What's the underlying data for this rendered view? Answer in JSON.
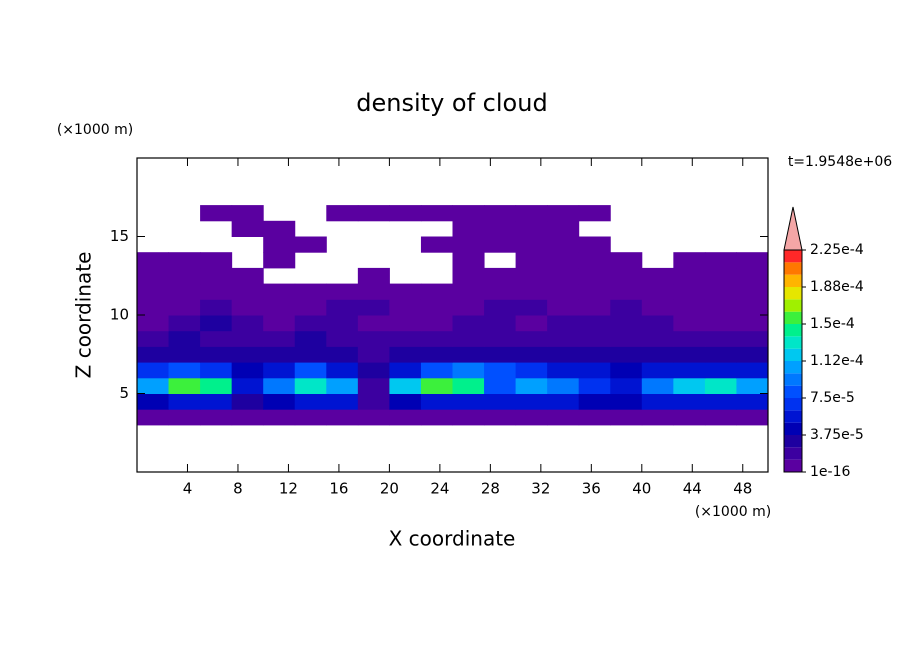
{
  "chart_data": {
    "type": "contour",
    "title": "density of cloud",
    "x_label": "X coordinate",
    "y_label": "Z coordinate",
    "x_unit": "(×1000 m)",
    "y_unit": "(×1000 m)",
    "annotation": "t=1.9548e+06",
    "xlim": [
      0,
      50
    ],
    "ylim": [
      0,
      20
    ],
    "xticks": [
      4,
      8,
      12,
      16,
      20,
      24,
      28,
      32,
      36,
      40,
      44,
      48
    ],
    "yticks": [
      5,
      10,
      15
    ],
    "x": [
      1.25,
      3.75,
      6.25,
      8.75,
      11.25,
      13.75,
      16.25,
      18.75,
      21.25,
      23.75,
      26.25,
      28.75,
      31.25,
      33.75,
      36.25,
      38.75,
      41.25,
      43.75,
      46.25,
      48.75
    ],
    "y": [
      3.5,
      4.5,
      5.5,
      6.5,
      7.5,
      8.5,
      9.5,
      10.5,
      11.5,
      12.5,
      13.5,
      14.5,
      15.5,
      16.5
    ],
    "z": [
      [
        1e-05,
        1e-05,
        1e-05,
        1e-05,
        1e-05,
        1e-05,
        1e-05,
        1e-05,
        1e-05,
        1e-05,
        1e-05,
        1e-05,
        1e-05,
        1e-05,
        1e-05,
        1e-05,
        1e-05,
        1e-05,
        1e-05,
        1e-05
      ],
      [
        4e-05,
        5e-05,
        5e-05,
        3e-05,
        4e-05,
        6e-05,
        5e-05,
        1.5e-05,
        4e-05,
        6e-05,
        6e-05,
        5e-05,
        5e-05,
        5e-05,
        4e-05,
        4e-05,
        5e-05,
        6e-05,
        6e-05,
        5e-05
      ],
      [
        0.00011,
        0.00015,
        0.00014,
        5e-05,
        9e-05,
        0.00013,
        0.0001,
        2e-05,
        0.00012,
        0.00016,
        0.00014,
        8e-05,
        0.0001,
        9e-05,
        7e-05,
        6e-05,
        9e-05,
        0.00012,
        0.00013,
        0.00011
      ],
      [
        7e-05,
        8e-05,
        7e-05,
        4e-05,
        6e-05,
        8e-05,
        6e-05,
        3e-05,
        6e-05,
        8e-05,
        9e-05,
        8e-05,
        7e-05,
        6e-05,
        5e-05,
        4e-05,
        5e-05,
        6e-05,
        6e-05,
        5e-05
      ],
      [
        3e-05,
        3e-05,
        3.5e-05,
        3e-05,
        2.5e-05,
        3e-05,
        3e-05,
        2e-05,
        3e-05,
        3e-05,
        3e-05,
        3e-05,
        3e-05,
        2.5e-05,
        2.5e-05,
        2.5e-05,
        3e-05,
        3e-05,
        2.5e-05,
        2.5e-05
      ],
      [
        1.5e-05,
        2.5e-05,
        2e-05,
        2e-05,
        2e-05,
        2.5e-05,
        2e-05,
        1.5e-05,
        1.5e-05,
        2e-05,
        2e-05,
        1.5e-05,
        2e-05,
        2e-05,
        2e-05,
        2e-05,
        1.5e-05,
        2e-05,
        2e-05,
        1.5e-05
      ],
      [
        1e-05,
        1.5e-05,
        2.5e-05,
        1.5e-05,
        1e-05,
        1.5e-05,
        1.5e-05,
        1e-05,
        1e-05,
        1e-05,
        1.5e-05,
        1.5e-05,
        1e-05,
        1.5e-05,
        1.5e-05,
        1.5e-05,
        1.5e-05,
        1e-05,
        1e-05,
        1e-05
      ],
      [
        5e-06,
        1e-05,
        1.5e-05,
        1e-05,
        1e-05,
        1e-05,
        1.5e-05,
        1.5e-05,
        5e-06,
        1e-05,
        1e-05,
        1.5e-05,
        1.5e-05,
        1e-05,
        1e-05,
        1.5e-05,
        1e-05,
        5e-06,
        5e-06,
        5e-06
      ],
      [
        5e-06,
        5e-06,
        5e-06,
        5e-06,
        5e-06,
        5e-06,
        5e-06,
        5e-06,
        5e-06,
        5e-06,
        5e-06,
        5e-06,
        5e-06,
        5e-06,
        5e-06,
        5e-06,
        5e-06,
        5e-06,
        5e-06,
        5e-06
      ],
      [
        5e-06,
        5e-06,
        5e-06,
        5e-06,
        null,
        null,
        null,
        5e-06,
        null,
        null,
        5e-06,
        5e-06,
        5e-06,
        5e-06,
        5e-06,
        5e-06,
        5e-06,
        5e-06,
        5e-06,
        5e-06
      ],
      [
        5e-06,
        5e-06,
        5e-06,
        null,
        5e-06,
        null,
        null,
        null,
        null,
        null,
        5e-06,
        null,
        5e-06,
        5e-06,
        5e-06,
        5e-06,
        null,
        5e-06,
        5e-06,
        5e-06
      ],
      [
        null,
        null,
        null,
        null,
        5e-06,
        5e-06,
        null,
        null,
        null,
        5e-06,
        5e-06,
        5e-06,
        5e-06,
        5e-06,
        5e-06,
        null,
        null,
        null,
        null,
        null
      ],
      [
        null,
        null,
        null,
        5e-06,
        5e-06,
        null,
        null,
        null,
        null,
        null,
        5e-06,
        5e-06,
        5e-06,
        5e-06,
        null,
        null,
        null,
        null,
        null,
        null
      ],
      [
        null,
        null,
        5e-06,
        5e-06,
        null,
        null,
        5e-06,
        5e-06,
        5e-06,
        5e-06,
        5e-06,
        5e-06,
        5e-06,
        5e-06,
        5e-06,
        null,
        null,
        null,
        null,
        null
      ]
    ],
    "levels": [
      1e-16,
      1.25e-05,
      2.5e-05,
      3.75e-05,
      5e-05,
      6.25e-05,
      7.5e-05,
      8.75e-05,
      0.0001,
      0.0001125,
      0.000125,
      0.0001375,
      0.00015,
      0.0001625,
      0.000175,
      0.0001875,
      0.0002,
      0.0002125,
      0.000225
    ],
    "colors": [
      "#5a00a0",
      "#3c00a0",
      "#1e00a0",
      "#0000b4",
      "#0014d2",
      "#0032f0",
      "#0050ff",
      "#0078ff",
      "#00a0ff",
      "#00c8f0",
      "#00e6c8",
      "#00f08c",
      "#3cf03c",
      "#a0f000",
      "#e6e600",
      "#ffb400",
      "#ff7800",
      "#ff2828"
    ],
    "over_color": "#f4a6a6",
    "colorbar_ticks": [
      {
        "value": 1e-16,
        "label": "1e-16"
      },
      {
        "value": 3.75e-05,
        "label": "3.75e-5"
      },
      {
        "value": 7.5e-05,
        "label": "7.5e-5"
      },
      {
        "value": 0.0001125,
        "label": "1.12e-4"
      },
      {
        "value": 0.00015,
        "label": "1.5e-4"
      },
      {
        "value": 0.0001875,
        "label": "1.88e-4"
      },
      {
        "value": 0.000225,
        "label": "2.25e-4"
      }
    ]
  }
}
